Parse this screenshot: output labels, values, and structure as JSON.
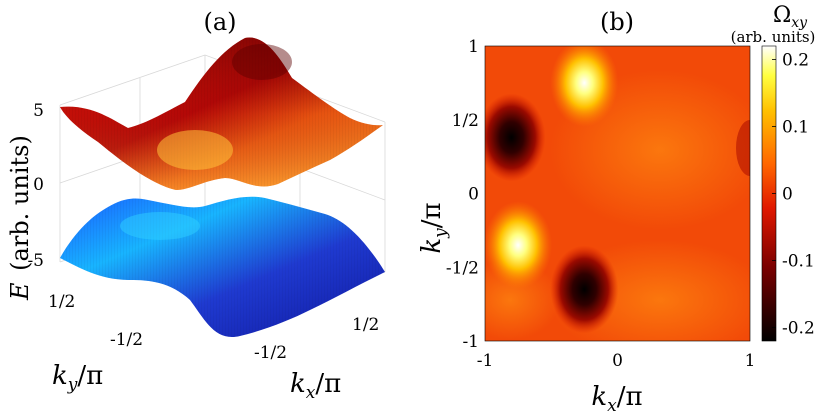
{
  "chart_data": [
    {
      "type": "surface",
      "panel_label": "(a)",
      "zlabel": "E (arb. units)",
      "zlabel_symbol": "E",
      "zlabel_unit": "(arb. units)",
      "xlabel": "k_x/π",
      "ylabel": "k_y/π",
      "xlabel_main": "k",
      "xlabel_sub": "x",
      "xlabel_tail": "/π",
      "ylabel_main": "k",
      "ylabel_sub": "y",
      "ylabel_tail": "/π",
      "x_ticks": [
        "-1/2",
        "1/2"
      ],
      "y_ticks": [
        "1/2",
        "-1/2"
      ],
      "z_ticks": [
        "5",
        "0",
        "-5"
      ],
      "zlim": [
        -5,
        5
      ],
      "series": [
        {
          "band": "upper",
          "colormap": "hot",
          "z_range": [
            0.5,
            5
          ]
        },
        {
          "band": "lower",
          "colormap": "blue",
          "z_range": [
            -5,
            -0.5
          ]
        }
      ],
      "grid": true
    },
    {
      "type": "heatmap",
      "panel_label": "(b)",
      "xlabel": "k_x/π",
      "ylabel": "k_y/π",
      "xlabel_main": "k",
      "xlabel_sub": "x",
      "xlabel_tail": "/π",
      "ylabel_main": "k",
      "ylabel_sub": "y",
      "ylabel_tail": "/π",
      "x_ticks": [
        "-1",
        "0",
        "1"
      ],
      "y_ticks": [
        "1",
        "1/2",
        "0",
        "-1/2",
        "-1"
      ],
      "xlim": [
        -1,
        1
      ],
      "ylim": [
        -1,
        1
      ],
      "colorbar_title": "Ω_xy",
      "colorbar_title_main": "Ω",
      "colorbar_title_sub": "xy",
      "colorbar_unit": "(arb. units)",
      "colorbar_ticks": [
        "0.2",
        "0.1",
        "0",
        "-0.1",
        "-0.2"
      ],
      "clim": [
        -0.22,
        0.22
      ],
      "colormap": "hot",
      "features": [
        {
          "kx": -0.25,
          "ky": 0.75,
          "value": 0.22
        },
        {
          "kx": -0.75,
          "ky": -0.35,
          "value": 0.22
        },
        {
          "kx": -0.8,
          "ky": 0.38,
          "value": -0.22
        },
        {
          "kx": -0.25,
          "ky": -0.65,
          "value": -0.22
        }
      ]
    }
  ]
}
